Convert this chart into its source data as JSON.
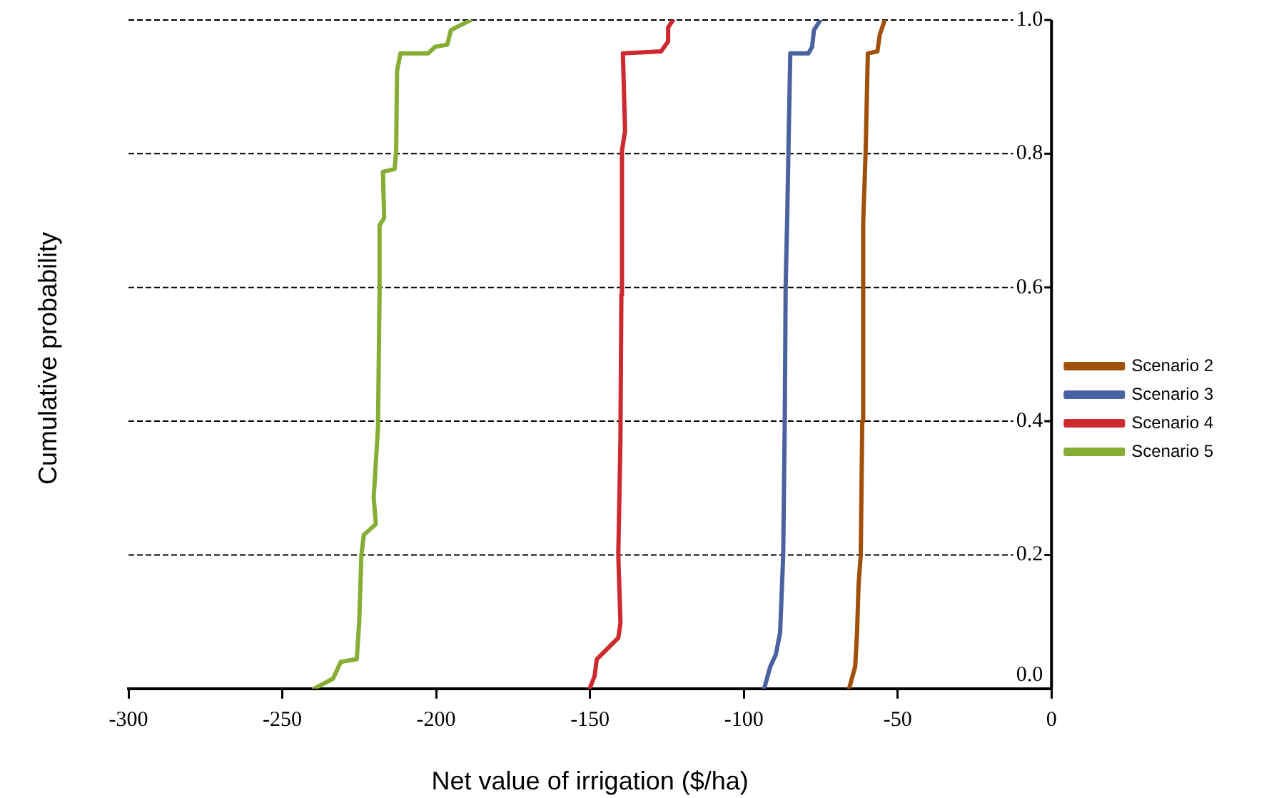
{
  "chart_data": {
    "type": "line",
    "xlabel": "Net value of irrigation ($/ha)",
    "ylabel": "Cumulative probability",
    "xlim": [
      -300,
      0
    ],
    "xticks": [
      -300,
      -250,
      -200,
      -150,
      -100,
      -50,
      0
    ],
    "ylim": [
      0,
      1
    ],
    "yticks": [
      {
        "value": 0,
        "label": "0.0"
      },
      {
        "value": 0.2,
        "label": "0.2"
      },
      {
        "value": 0.4,
        "label": "0.4"
      },
      {
        "value": 0.6,
        "label": "0.6"
      },
      {
        "value": 0.8,
        "label": "0.8"
      },
      {
        "value": 1,
        "label": "1.0"
      }
    ],
    "grid": "y",
    "legend": "right",
    "marker": "none",
    "line_style": "solid",
    "series": [
      {
        "name": "Scenario 2",
        "color": "#a0500a",
        "x": [
          -65.8,
          -63.8,
          -63.2,
          -62.7,
          -62,
          -61.5,
          -61.2,
          -60.4,
          -59.7,
          -56.6,
          -55.8,
          -54.2
        ],
        "values": [
          0,
          0.033,
          0.084,
          0.156,
          0.2,
          0.4,
          0.697,
          0.805,
          0.95,
          0.953,
          0.978,
          1
        ]
      },
      {
        "name": "Scenario 3",
        "color": "#4a62a0",
        "x": [
          -93.4,
          -91.4,
          -89.6,
          -88.2,
          -87.2,
          -86.7,
          -86.4,
          -85.9,
          -85.5,
          -84.9,
          -79,
          -77.8,
          -77.2,
          -75.1
        ],
        "values": [
          0,
          0.033,
          0.051,
          0.084,
          0.2,
          0.4,
          0.603,
          0.704,
          0.805,
          0.95,
          0.95,
          0.96,
          0.985,
          1
        ]
      },
      {
        "name": "Scenario 4",
        "color": "#cc2a2e",
        "x": [
          -150.1,
          -148.5,
          -147.8,
          -140.8,
          -140.1,
          -140.8,
          -140.1,
          -139.8,
          -139.6,
          -138.6,
          -139.3,
          -126.9,
          -124.6,
          -124.6,
          -123
        ],
        "values": [
          0,
          0.019,
          0.044,
          0.076,
          0.098,
          0.2,
          0.372,
          0.589,
          0.805,
          0.834,
          0.95,
          0.953,
          0.968,
          0.989,
          1
        ]
      },
      {
        "name": "Scenario 5",
        "color": "#86ae34",
        "x": [
          -239.7,
          -233.5,
          -231,
          -225.8,
          -225,
          -224.3,
          -223.5,
          -219.6,
          -220.3,
          -218.9,
          -218.4,
          -218.4,
          -216.9,
          -217.3,
          -213.5,
          -213,
          -212.7,
          -211.6,
          -202.6,
          -200.3,
          -196.4,
          -195.2,
          -191.8,
          -188.7
        ],
        "values": [
          0,
          0.015,
          0.04,
          0.044,
          0.1,
          0.2,
          0.23,
          0.246,
          0.286,
          0.39,
          0.59,
          0.693,
          0.704,
          0.773,
          0.777,
          0.805,
          0.924,
          0.95,
          0.95,
          0.96,
          0.963,
          0.985,
          0.993,
          1
        ]
      }
    ]
  }
}
